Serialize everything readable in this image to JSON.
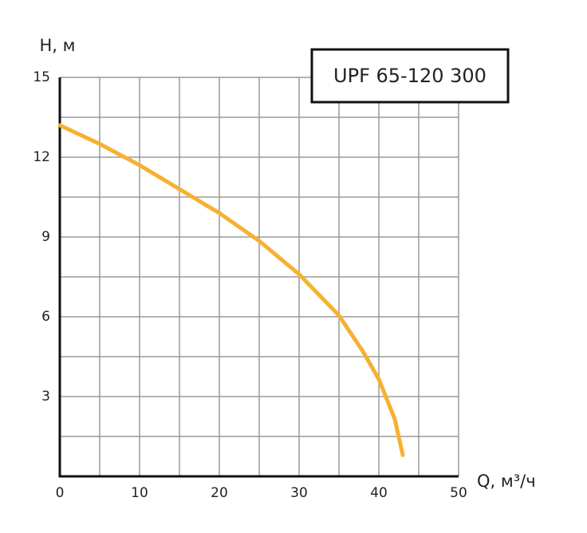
{
  "chart_data": {
    "type": "line",
    "title": "UPF 65-120 300",
    "y_label": "H, м",
    "x_label": "Q, м³/ч",
    "x": [
      0,
      5,
      10,
      15,
      20,
      25,
      30,
      35,
      38,
      40,
      42,
      43
    ],
    "series": [
      {
        "name": "UPF 65-120 300",
        "color": "#f6b132",
        "values": [
          13.2,
          12.5,
          11.7,
          10.8,
          9.9,
          8.85,
          7.6,
          6.05,
          4.7,
          3.65,
          2.15,
          0.8
        ]
      }
    ],
    "xlim": [
      0,
      50
    ],
    "ylim": [
      0,
      15
    ],
    "xticks": [
      0,
      10,
      20,
      30,
      40,
      50
    ],
    "yticks": [
      3,
      6,
      9,
      12,
      15
    ],
    "xminor": [
      5,
      15,
      25,
      35,
      45
    ],
    "yminor": [
      1.5,
      4.5,
      7.5,
      10.5,
      13.5
    ],
    "grid": true
  }
}
